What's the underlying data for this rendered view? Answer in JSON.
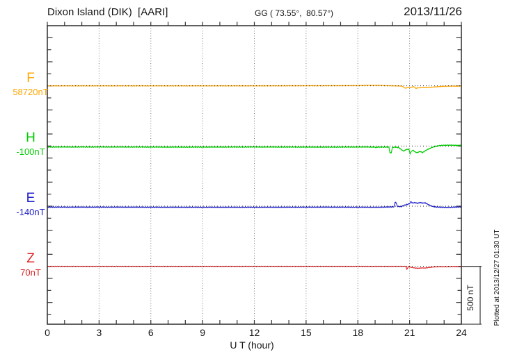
{
  "header": {
    "title": "Dixon Island (DIK)  [AARI]",
    "coords": "GG ( 73.55°,  80.57°)",
    "date": "2013/11/26"
  },
  "xaxis": {
    "label": "U T (hour)",
    "tick_labels": [
      "0",
      "3",
      "6",
      "9",
      "12",
      "15",
      "18",
      "21",
      "24"
    ],
    "tick_hours": [
      0,
      3,
      6,
      9,
      12,
      15,
      18,
      21,
      24
    ],
    "minor_step_hours": 1,
    "range_hours": [
      0,
      24
    ],
    "gridline_hours": [
      3,
      6,
      9,
      12,
      15,
      18,
      21
    ]
  },
  "scale_bar": {
    "label": "500 nT",
    "nT": 500
  },
  "plotted_at": "Plotted at 2013/12/27 01:30 UT",
  "channels": [
    {
      "id": "F",
      "label": "F",
      "baseline_label": "58720nT",
      "baseline_nT": 58720,
      "color": "#FFA500"
    },
    {
      "id": "H",
      "label": "H",
      "baseline_label": "-100nT",
      "baseline_nT": -100,
      "color": "#00CC00"
    },
    {
      "id": "E",
      "label": "E",
      "baseline_label": "-140nT",
      "baseline_nT": -140,
      "color": "#2222CC"
    },
    {
      "id": "Z",
      "label": "Z",
      "baseline_label": "70nT",
      "baseline_nT": 70,
      "color": "#DD2222"
    }
  ],
  "chart_data": {
    "type": "line",
    "title": "Dixon Island (DIK) [AARI] magnetogram, 2013/11/26",
    "xlabel": "U T (hour)",
    "x_range": [
      0,
      24
    ],
    "y_unit": "nT (deviation from each channel baseline)",
    "y_tick_interval_nT": 100,
    "scale_bar_nT": 500,
    "grid": "dotted vertical lines every 3 hours; dotted horizontal baseline per channel",
    "legend_position": "channel letters with baseline values on left margin",
    "series": [
      {
        "name": "F",
        "baseline_nT": 58720,
        "color": "#FFA500",
        "points_hour_devnT": [
          [
            0,
            0
          ],
          [
            6,
            0
          ],
          [
            12,
            0
          ],
          [
            16,
            1
          ],
          [
            18,
            2
          ],
          [
            18.6,
            5
          ],
          [
            19.2,
            4
          ],
          [
            19.7,
            1
          ],
          [
            20.2,
            0
          ],
          [
            20.55,
            -2
          ],
          [
            20.75,
            -20
          ],
          [
            20.9,
            -13
          ],
          [
            21.1,
            -12
          ],
          [
            21.25,
            -6
          ],
          [
            21.35,
            -21
          ],
          [
            21.5,
            -16
          ],
          [
            21.8,
            -14
          ],
          [
            22.1,
            -13
          ],
          [
            22.5,
            -8
          ],
          [
            23,
            -4
          ],
          [
            23.4,
            -2
          ],
          [
            24,
            -3
          ]
        ]
      },
      {
        "name": "H",
        "baseline_nT": -100,
        "color": "#00CC00",
        "points_hour_devnT": [
          [
            0,
            -8
          ],
          [
            4,
            -8
          ],
          [
            8,
            -9
          ],
          [
            12,
            -8
          ],
          [
            16,
            -9
          ],
          [
            18.5,
            -8
          ],
          [
            19,
            -9
          ],
          [
            19.05,
            -14
          ],
          [
            19.1,
            -9
          ],
          [
            19.8,
            -9
          ],
          [
            19.86,
            -55
          ],
          [
            19.93,
            -60
          ],
          [
            20,
            -12
          ],
          [
            20.15,
            -9
          ],
          [
            20.35,
            -12
          ],
          [
            20.5,
            -28
          ],
          [
            20.65,
            -42
          ],
          [
            20.8,
            -30
          ],
          [
            20.95,
            -25
          ],
          [
            21.03,
            -62
          ],
          [
            21.12,
            -40
          ],
          [
            21.22,
            -36
          ],
          [
            21.32,
            -50
          ],
          [
            21.45,
            -55
          ],
          [
            21.6,
            -45
          ],
          [
            21.75,
            -55
          ],
          [
            21.9,
            -40
          ],
          [
            22.05,
            -28
          ],
          [
            22.2,
            -18
          ],
          [
            22.4,
            -6
          ],
          [
            22.7,
            3
          ],
          [
            23,
            6
          ],
          [
            23.4,
            7
          ],
          [
            23.8,
            5
          ],
          [
            24,
            6
          ]
        ]
      },
      {
        "name": "E",
        "baseline_nT": -140,
        "color": "#2222CC",
        "points_hour_devnT": [
          [
            0,
            -8
          ],
          [
            4,
            -8
          ],
          [
            8,
            -9
          ],
          [
            12,
            -9
          ],
          [
            16,
            -8
          ],
          [
            19.3,
            -9
          ],
          [
            19.9,
            -6
          ],
          [
            20.1,
            -5
          ],
          [
            20.15,
            30
          ],
          [
            20.2,
            32
          ],
          [
            20.3,
            -2
          ],
          [
            20.5,
            -4
          ],
          [
            20.7,
            8
          ],
          [
            20.9,
            16
          ],
          [
            21,
            22
          ],
          [
            21.08,
            38
          ],
          [
            21.16,
            26
          ],
          [
            21.3,
            30
          ],
          [
            21.45,
            24
          ],
          [
            21.6,
            30
          ],
          [
            21.75,
            26
          ],
          [
            21.9,
            28
          ],
          [
            22,
            20
          ],
          [
            22.1,
            12
          ],
          [
            22.25,
            2
          ],
          [
            22.45,
            -6
          ],
          [
            22.8,
            -9
          ],
          [
            23.2,
            -10
          ],
          [
            23.6,
            -8
          ],
          [
            24,
            -6
          ]
        ]
      },
      {
        "name": "Z",
        "baseline_nT": 70,
        "color": "#DD2222",
        "points_hour_devnT": [
          [
            0,
            0
          ],
          [
            6,
            0
          ],
          [
            12,
            0
          ],
          [
            18,
            0
          ],
          [
            19.9,
            0
          ],
          [
            20.78,
            0
          ],
          [
            20.84,
            -25
          ],
          [
            20.92,
            -3
          ],
          [
            21.1,
            -8
          ],
          [
            21.3,
            -14
          ],
          [
            21.5,
            -16
          ],
          [
            21.7,
            -13
          ],
          [
            21.9,
            -14
          ],
          [
            22.1,
            -10
          ],
          [
            22.4,
            -5
          ],
          [
            22.7,
            -3
          ],
          [
            23.2,
            -3
          ],
          [
            23.6,
            -2
          ],
          [
            24,
            -3
          ]
        ]
      }
    ]
  }
}
